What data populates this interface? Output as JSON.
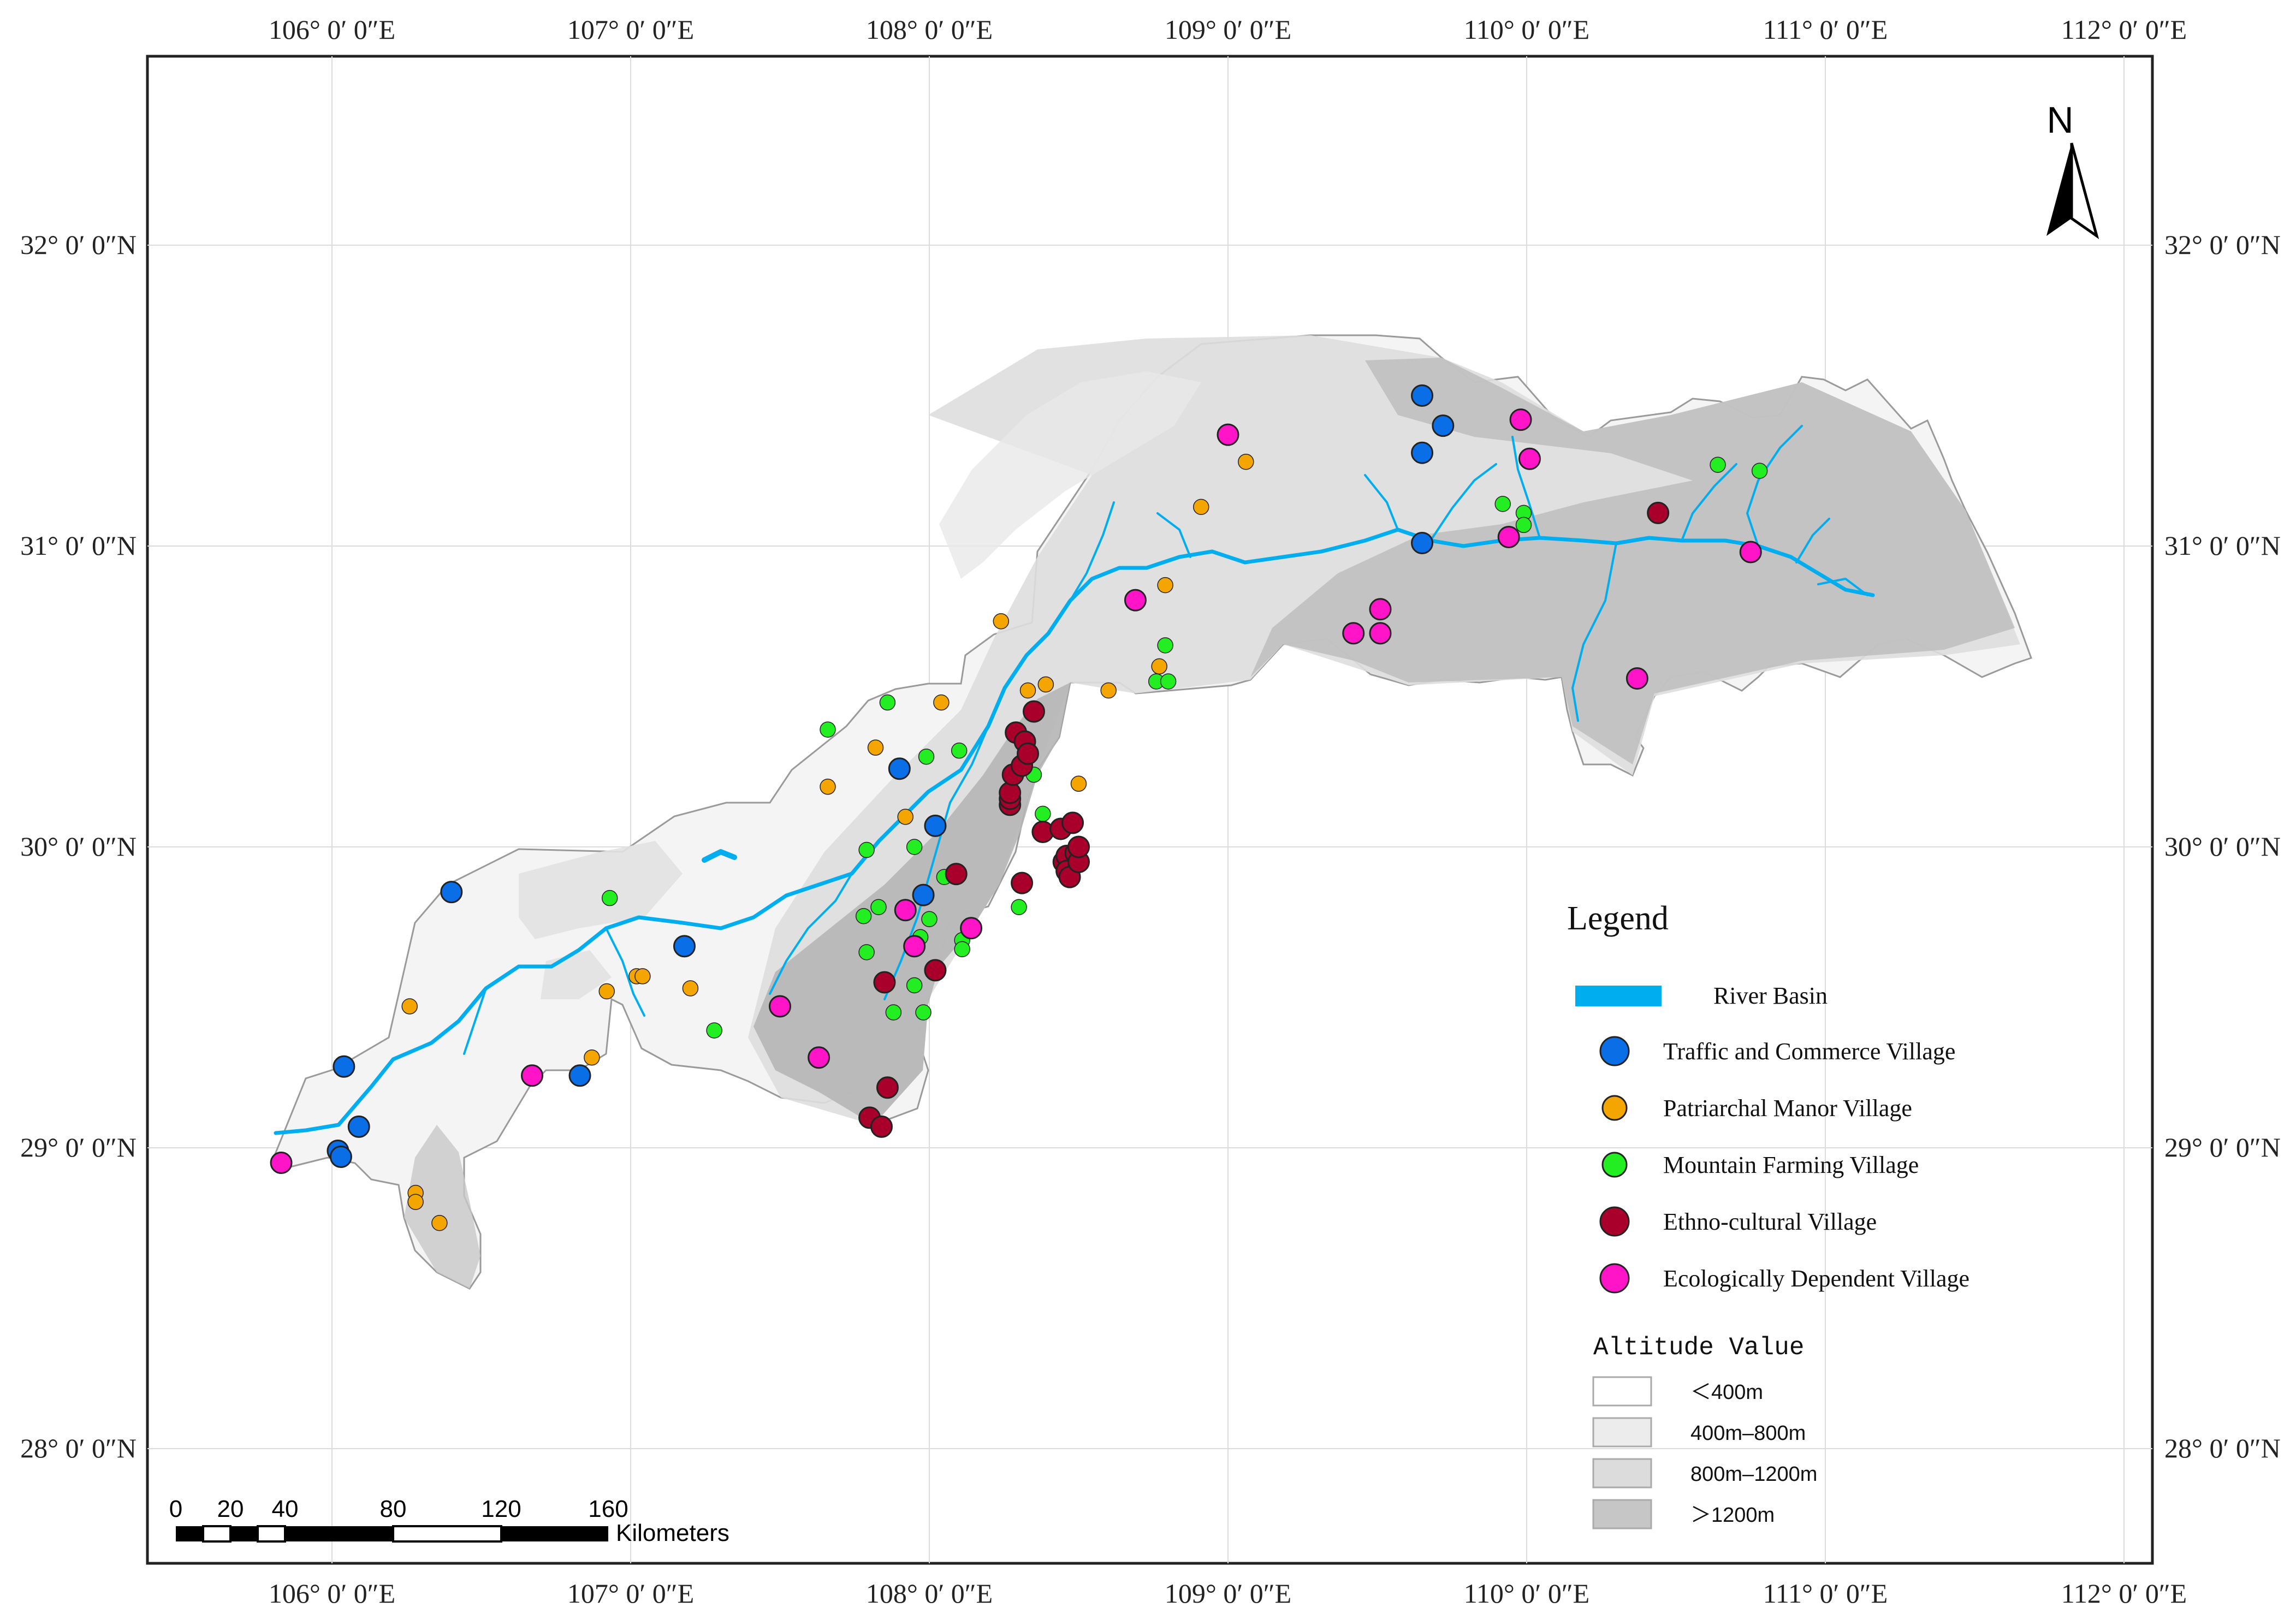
{
  "map": {
    "lon_labels": [
      {
        "lon": 106,
        "text": "106° 0′ 0″E"
      },
      {
        "lon": 107,
        "text": "107° 0′ 0″E"
      },
      {
        "lon": 108,
        "text": "108° 0′ 0″E"
      },
      {
        "lon": 109,
        "text": "109° 0′ 0″E"
      },
      {
        "lon": 110,
        "text": "110° 0′ 0″E"
      },
      {
        "lon": 111,
        "text": "111° 0′ 0″E"
      },
      {
        "lon": 112,
        "text": "112° 0′ 0″E"
      }
    ],
    "lat_labels": [
      {
        "lat": 32,
        "text": "32° 0′ 0″N"
      },
      {
        "lat": 31,
        "text": "31° 0′ 0″N"
      },
      {
        "lat": 30,
        "text": "30° 0′ 0″N"
      },
      {
        "lat": 29,
        "text": "29° 0′ 0″N"
      },
      {
        "lat": 28,
        "text": "28° 0′ 0″N"
      }
    ],
    "north_label": "N",
    "colors": {
      "river": "#00aeef",
      "traffic": "#0a6ee6",
      "patriarchal": "#f5a500",
      "mountain": "#22ee22",
      "ethno": "#a8002a",
      "eco": "#ff14c8",
      "alt_low": "#ffffff",
      "alt_mid1": "#ececec",
      "alt_mid2": "#dcdcdc",
      "alt_high": "#c6c6c6"
    }
  },
  "legend": {
    "title": "Legend",
    "river_label": "River Basin",
    "categories": [
      {
        "key": "traffic",
        "label": "Traffic and Commerce Village",
        "color": "#0a6ee6"
      },
      {
        "key": "patriarchal",
        "label": "Patriarchal Manor Village",
        "color": "#f5a500"
      },
      {
        "key": "mountain",
        "label": "Mountain Farming Village",
        "color": "#22ee22"
      },
      {
        "key": "ethno",
        "label": "Ethno-cultural Village",
        "color": "#a8002a"
      },
      {
        "key": "eco",
        "label": "Ecologically Dependent Village",
        "color": "#ff14c8"
      }
    ],
    "altitude_title": "Altitude  Value",
    "altitude_classes": [
      {
        "label": "＜400m",
        "color": "#ffffff"
      },
      {
        "label": "400m–800m",
        "color": "#ececec"
      },
      {
        "label": "800m–1200m",
        "color": "#dcdcdc"
      },
      {
        "label": "＞1200m",
        "color": "#c6c6c6"
      }
    ]
  },
  "scale_bar": {
    "ticks": [
      "0",
      "20",
      "40",
      "80",
      "120",
      "160"
    ],
    "units": "Kilometers"
  },
  "villages": {
    "traffic": [
      [
        106.4,
        29.85
      ],
      [
        106.04,
        29.27
      ],
      [
        106.09,
        29.07
      ],
      [
        106.02,
        28.99
      ],
      [
        106.03,
        28.97
      ],
      [
        106.83,
        29.24
      ],
      [
        107.18,
        29.67
      ],
      [
        107.9,
        30.26
      ],
      [
        107.98,
        29.84
      ],
      [
        108.02,
        30.07
      ],
      [
        109.65,
        31.5
      ],
      [
        109.72,
        31.4
      ],
      [
        109.65,
        31.31
      ],
      [
        109.65,
        31.01
      ]
    ],
    "patriarchal": [
      [
        106.26,
        29.47
      ],
      [
        106.28,
        28.85
      ],
      [
        106.28,
        28.82
      ],
      [
        106.36,
        28.75
      ],
      [
        106.87,
        29.3
      ],
      [
        106.92,
        29.52
      ],
      [
        107.02,
        29.57
      ],
      [
        107.04,
        29.57
      ],
      [
        107.2,
        29.53
      ],
      [
        107.66,
        30.2
      ],
      [
        107.92,
        30.1
      ],
      [
        108.04,
        30.48
      ],
      [
        108.24,
        30.75
      ],
      [
        108.33,
        30.52
      ],
      [
        108.39,
        30.54
      ],
      [
        108.5,
        30.21
      ],
      [
        108.6,
        30.52
      ],
      [
        108.77,
        30.6
      ],
      [
        108.79,
        30.87
      ],
      [
        108.91,
        31.13
      ],
      [
        109.06,
        31.28
      ],
      [
        107.82,
        30.33
      ]
    ],
    "mountain": [
      [
        106.93,
        29.83
      ],
      [
        107.28,
        29.39
      ],
      [
        107.66,
        30.39
      ],
      [
        107.78,
        29.77
      ],
      [
        107.79,
        29.65
      ],
      [
        107.79,
        29.99
      ],
      [
        107.83,
        29.8
      ],
      [
        107.86,
        30.48
      ],
      [
        107.88,
        29.45
      ],
      [
        107.95,
        30.0
      ],
      [
        107.95,
        29.54
      ],
      [
        107.97,
        29.7
      ],
      [
        107.98,
        29.45
      ],
      [
        107.99,
        30.3
      ],
      [
        108.0,
        29.76
      ],
      [
        108.05,
        29.9
      ],
      [
        108.1,
        30.32
      ],
      [
        108.11,
        29.69
      ],
      [
        108.11,
        29.66
      ],
      [
        108.3,
        29.8
      ],
      [
        108.35,
        30.24
      ],
      [
        108.38,
        30.11
      ],
      [
        108.76,
        30.55
      ],
      [
        108.8,
        30.55
      ],
      [
        108.79,
        30.67
      ],
      [
        109.92,
        31.14
      ],
      [
        109.99,
        31.11
      ],
      [
        109.99,
        31.07
      ],
      [
        110.64,
        31.27
      ],
      [
        110.78,
        31.25
      ]
    ],
    "ethno": [
      [
        107.8,
        29.1
      ],
      [
        107.84,
        29.07
      ],
      [
        107.85,
        29.55
      ],
      [
        107.86,
        29.2
      ],
      [
        108.02,
        29.59
      ],
      [
        108.09,
        29.91
      ],
      [
        108.27,
        30.14
      ],
      [
        108.27,
        30.16
      ],
      [
        108.27,
        30.18
      ],
      [
        108.28,
        30.24
      ],
      [
        108.29,
        30.38
      ],
      [
        108.31,
        30.27
      ],
      [
        108.32,
        30.35
      ],
      [
        108.33,
        30.31
      ],
      [
        108.35,
        30.45
      ],
      [
        108.38,
        30.05
      ],
      [
        108.31,
        29.88
      ],
      [
        108.44,
        30.06
      ],
      [
        108.45,
        29.95
      ],
      [
        108.46,
        29.97
      ],
      [
        108.46,
        29.92
      ],
      [
        108.47,
        29.9
      ],
      [
        108.48,
        30.08
      ],
      [
        108.49,
        29.98
      ],
      [
        108.5,
        29.95
      ],
      [
        108.5,
        30.0
      ],
      [
        110.44,
        31.11
      ]
    ],
    "eco": [
      [
        105.83,
        28.95
      ],
      [
        106.67,
        29.24
      ],
      [
        107.5,
        29.47
      ],
      [
        107.63,
        29.3
      ],
      [
        107.92,
        29.79
      ],
      [
        107.95,
        29.67
      ],
      [
        108.14,
        29.73
      ],
      [
        108.69,
        30.82
      ],
      [
        109.0,
        31.37
      ],
      [
        109.42,
        30.71
      ],
      [
        109.51,
        30.79
      ],
      [
        109.51,
        30.71
      ],
      [
        109.94,
        31.03
      ],
      [
        109.98,
        31.42
      ],
      [
        110.01,
        31.29
      ],
      [
        110.37,
        30.56
      ],
      [
        110.75,
        30.98
      ]
    ]
  }
}
